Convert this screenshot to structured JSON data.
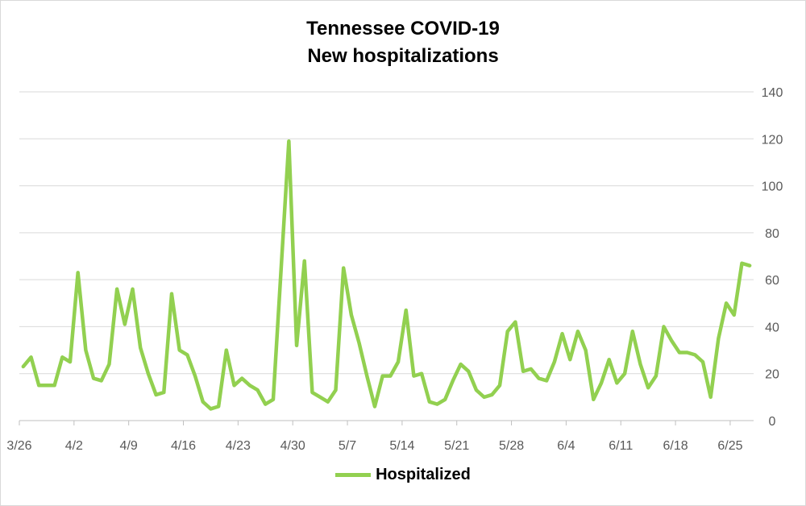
{
  "chart_data": {
    "type": "line",
    "title": "Tennessee COVID-19",
    "subtitle": "New hospitalizations",
    "xlabel": "",
    "ylabel": "",
    "ylim": [
      0,
      140
    ],
    "yticks": [
      0,
      20,
      40,
      60,
      80,
      100,
      120,
      140
    ],
    "y_axis_side": "right",
    "x_tick_labels": [
      "3/26",
      "4/2",
      "4/9",
      "4/16",
      "4/23",
      "4/30",
      "5/7",
      "5/14",
      "5/21",
      "5/28",
      "6/4",
      "6/11",
      "6/18",
      "6/25"
    ],
    "x_tick_interval_days": 7,
    "grid": true,
    "legend_position": "bottom",
    "line_color": "#92d050",
    "series": [
      {
        "name": "Hospitalized",
        "values": [
          23,
          27,
          15,
          15,
          15,
          27,
          25,
          63,
          30,
          18,
          17,
          24,
          56,
          41,
          56,
          31,
          20,
          11,
          12,
          54,
          30,
          28,
          19,
          8,
          5,
          6,
          30,
          15,
          18,
          15,
          13,
          7,
          9,
          64,
          119,
          32,
          68,
          12,
          10,
          8,
          13,
          65,
          45,
          33,
          19,
          6,
          19,
          19,
          25,
          47,
          19,
          20,
          8,
          7,
          9,
          17,
          24,
          21,
          13,
          10,
          11,
          15,
          38,
          42,
          21,
          22,
          18,
          17,
          25,
          37,
          26,
          38,
          30,
          9,
          16,
          26,
          16,
          20,
          38,
          24,
          14,
          19,
          40,
          34,
          29,
          29,
          28,
          25,
          10,
          35,
          50,
          45,
          67,
          66
        ]
      }
    ]
  }
}
